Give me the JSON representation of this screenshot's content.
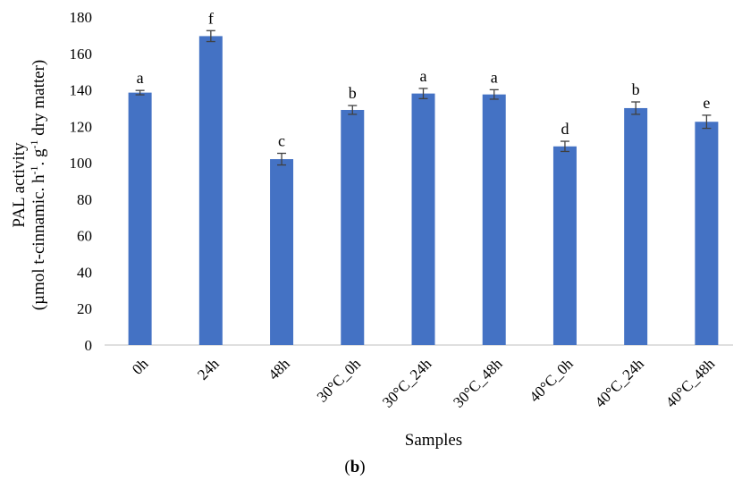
{
  "chart_data": {
    "type": "bar",
    "categories": [
      "0h",
      "24h",
      "48h",
      "30°C_0h",
      "30°C_24h",
      "30°C_48h",
      "40°C_0h",
      "40°C_24h",
      "40°C_48h"
    ],
    "series": [
      {
        "values": [
          138.5,
          169.5,
          102,
          129,
          138,
          137.5,
          109,
          130,
          122.5
        ],
        "errors": [
          1.2,
          3,
          3.2,
          2.4,
          2.8,
          2.6,
          2.8,
          3.4,
          3.6
        ],
        "significance_letters": [
          "a",
          "f",
          "c",
          "b",
          "a",
          "a",
          "d",
          "b",
          "e"
        ]
      }
    ],
    "bar_color": "#4472c4",
    "error_bar_color": "#404040",
    "xlabel": "Samples",
    "ylabel_line1": "PAL activity",
    "ylabel_line2_parts": [
      "(µmol t-cinnamic. h",
      "-1",
      ". g",
      "-1",
      " dry matter)"
    ],
    "ylim": [
      0,
      180
    ],
    "yticks": [
      "0",
      "20",
      "40",
      "60",
      "80",
      "100",
      "120",
      "140",
      "160",
      "180"
    ],
    "panel_label_open": "(",
    "panel_label": "b",
    "panel_label_close": ")"
  }
}
